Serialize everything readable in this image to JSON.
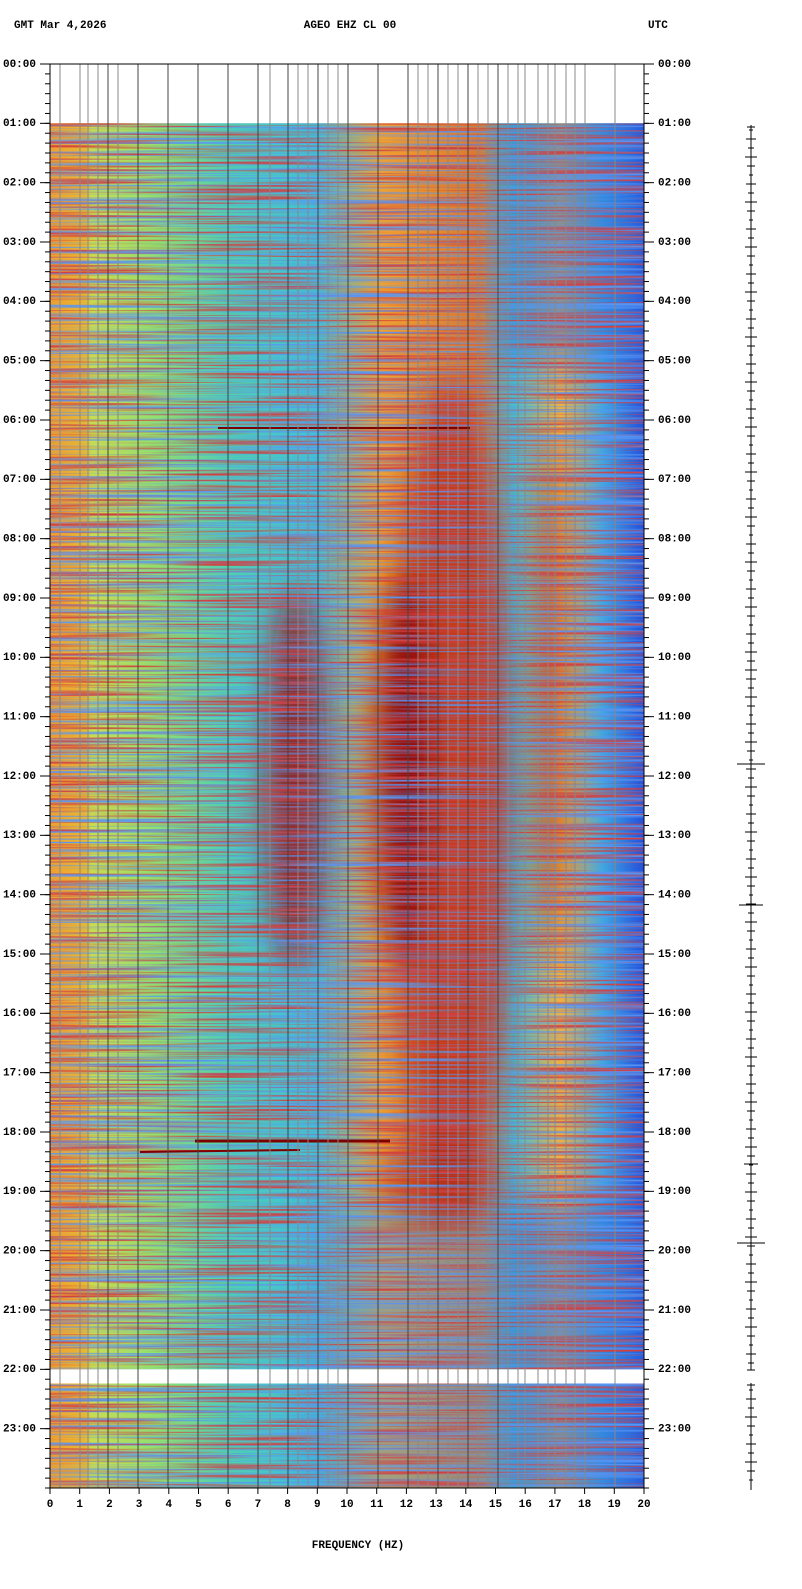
{
  "chart_data": {
    "type": "spectrogram",
    "header_left": "GMT  Mar 4,2026",
    "title": "AGEO EHZ CL 00",
    "header_right": "UTC",
    "xlabel": "FREQUENCY (HZ)",
    "xlim": [
      0,
      20
    ],
    "xticks": [
      0,
      1,
      2,
      3,
      4,
      5,
      6,
      7,
      8,
      9,
      10,
      11,
      12,
      13,
      14,
      15,
      16,
      17,
      18,
      19,
      20
    ],
    "ylim": [
      24,
      0
    ],
    "yticks": [
      {
        "value": 0,
        "label": "00:00"
      },
      {
        "value": 1,
        "label": "01:00"
      },
      {
        "value": 2,
        "label": "02:00"
      },
      {
        "value": 3,
        "label": "03:00"
      },
      {
        "value": 4,
        "label": "04:00"
      },
      {
        "value": 5,
        "label": "05:00"
      },
      {
        "value": 6,
        "label": "06:00"
      },
      {
        "value": 7,
        "label": "07:00"
      },
      {
        "value": 8,
        "label": "08:00"
      },
      {
        "value": 9,
        "label": "09:00"
      },
      {
        "value": 10,
        "label": "10:00"
      },
      {
        "value": 11,
        "label": "11:00"
      },
      {
        "value": 12,
        "label": "12:00"
      },
      {
        "value": 13,
        "label": "13:00"
      },
      {
        "value": 14,
        "label": "14:00"
      },
      {
        "value": 15,
        "label": "15:00"
      },
      {
        "value": 16,
        "label": "16:00"
      },
      {
        "value": 17,
        "label": "17:00"
      },
      {
        "value": 18,
        "label": "18:00"
      },
      {
        "value": 19,
        "label": "19:00"
      },
      {
        "value": 20,
        "label": "20:00"
      },
      {
        "value": 21,
        "label": "21:00"
      },
      {
        "value": 22,
        "label": "22:00"
      },
      {
        "value": 23,
        "label": "23:00"
      }
    ]
  }
}
